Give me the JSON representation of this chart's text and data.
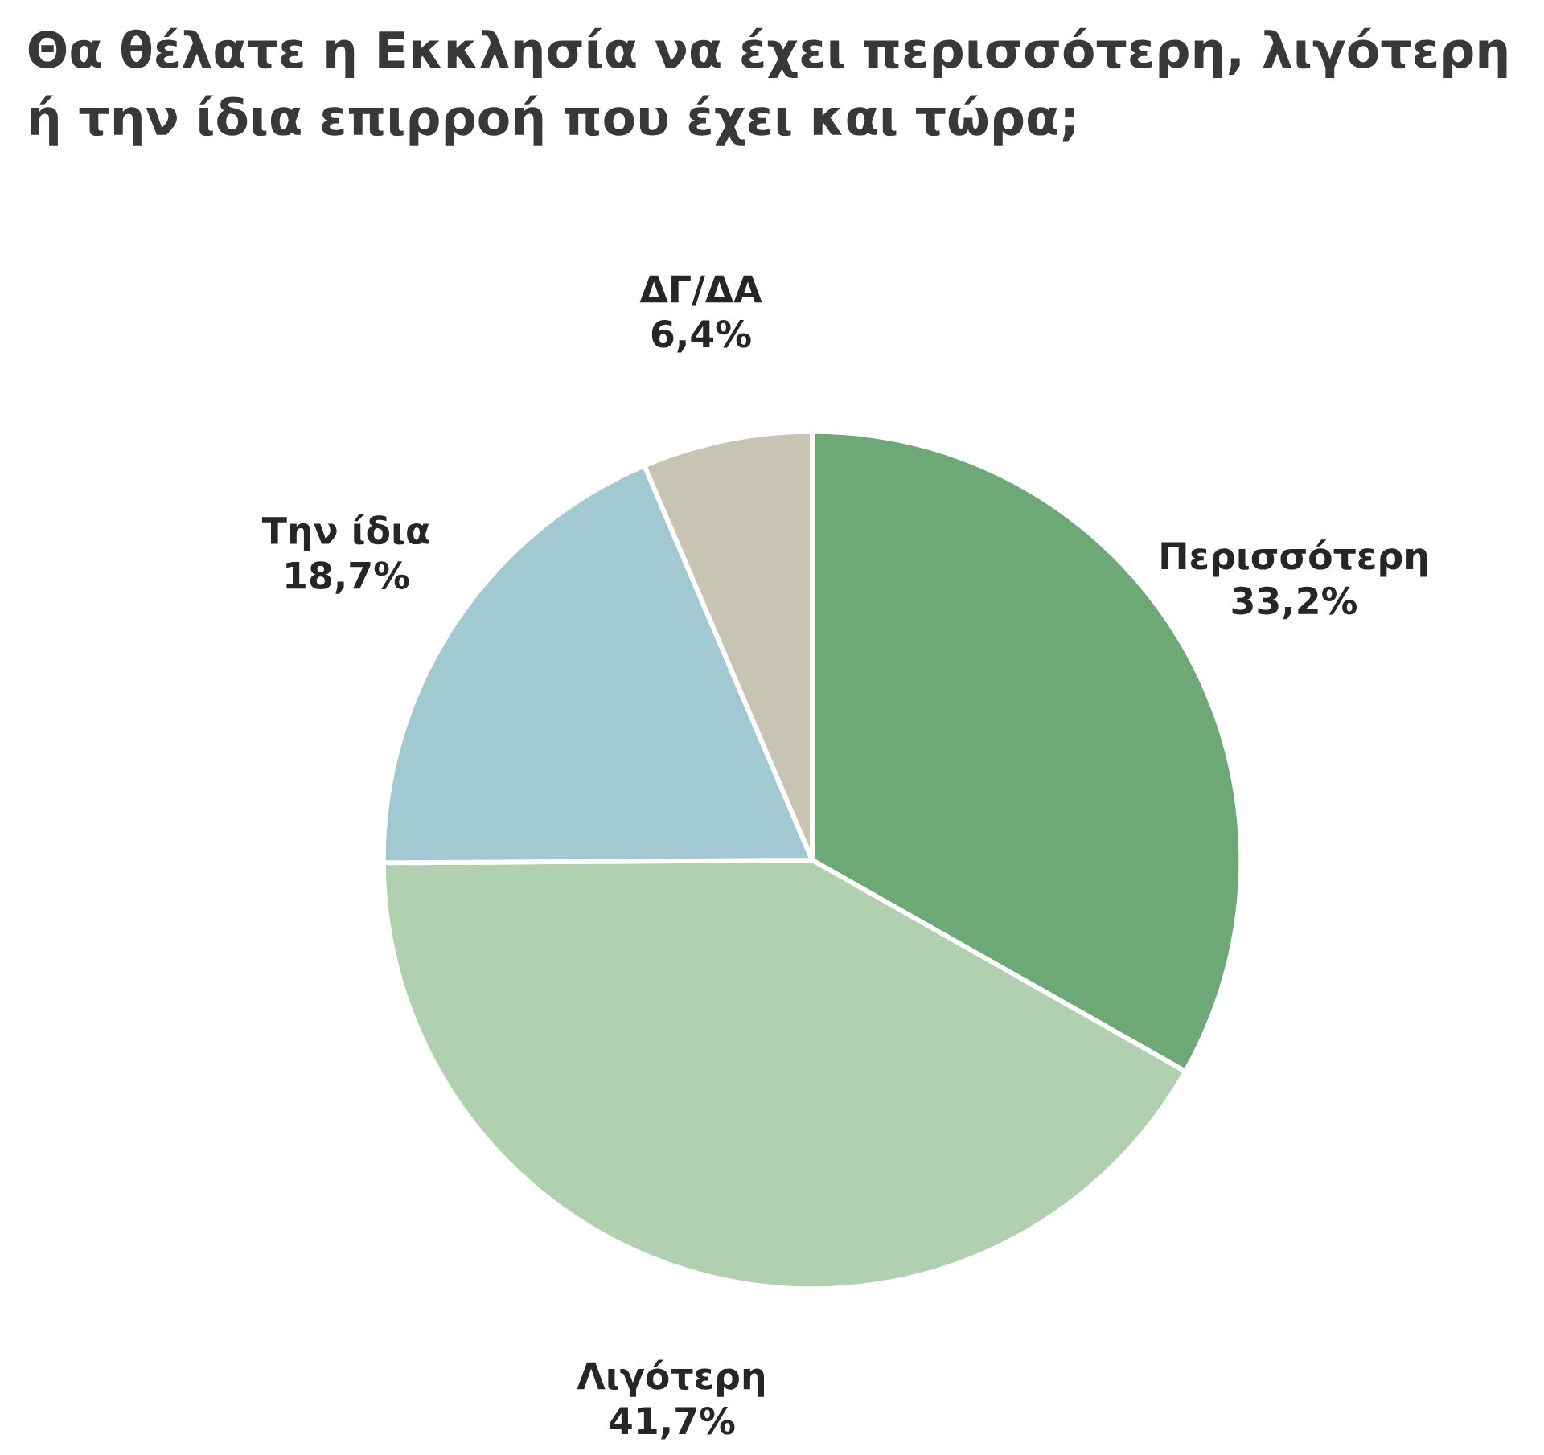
{
  "chart_data": {
    "type": "pie",
    "title": "Θα θέλατε η Εκκλησία να έχει περισσότερη, λιγότερη ή την ίδια επιρροή που έχει και τώρα;",
    "categories": [
      "Περισσότερη",
      "Λιγότερη",
      "Την ίδια",
      "ΔΓ/ΔΑ"
    ],
    "values": [
      33.2,
      41.7,
      18.7,
      6.4
    ],
    "value_labels": [
      "33,2%",
      "41,7%",
      "18,7%",
      "6,4%"
    ],
    "colors": [
      "#6ea877",
      "#b0d0b0",
      "#a2c8d2",
      "#c8c4b4"
    ]
  }
}
